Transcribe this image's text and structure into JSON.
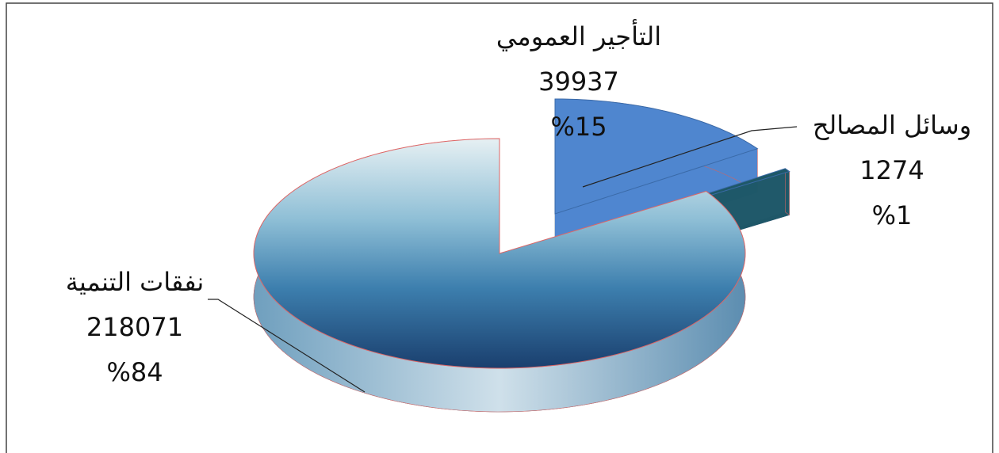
{
  "chart_data": {
    "type": "pie",
    "categories": [
      "التأجير العمومي",
      "وسائل المصالح",
      "نفقات التنمية"
    ],
    "values": [
      39937,
      1274,
      218071
    ],
    "percents": [
      {
        "value": 15,
        "label": "%15"
      },
      {
        "value": 1,
        "label": "%1"
      },
      {
        "value": 84,
        "label": "%84"
      }
    ],
    "colors": [
      "#4f86cf",
      "#1e5868",
      "#9fc6dc"
    ]
  }
}
